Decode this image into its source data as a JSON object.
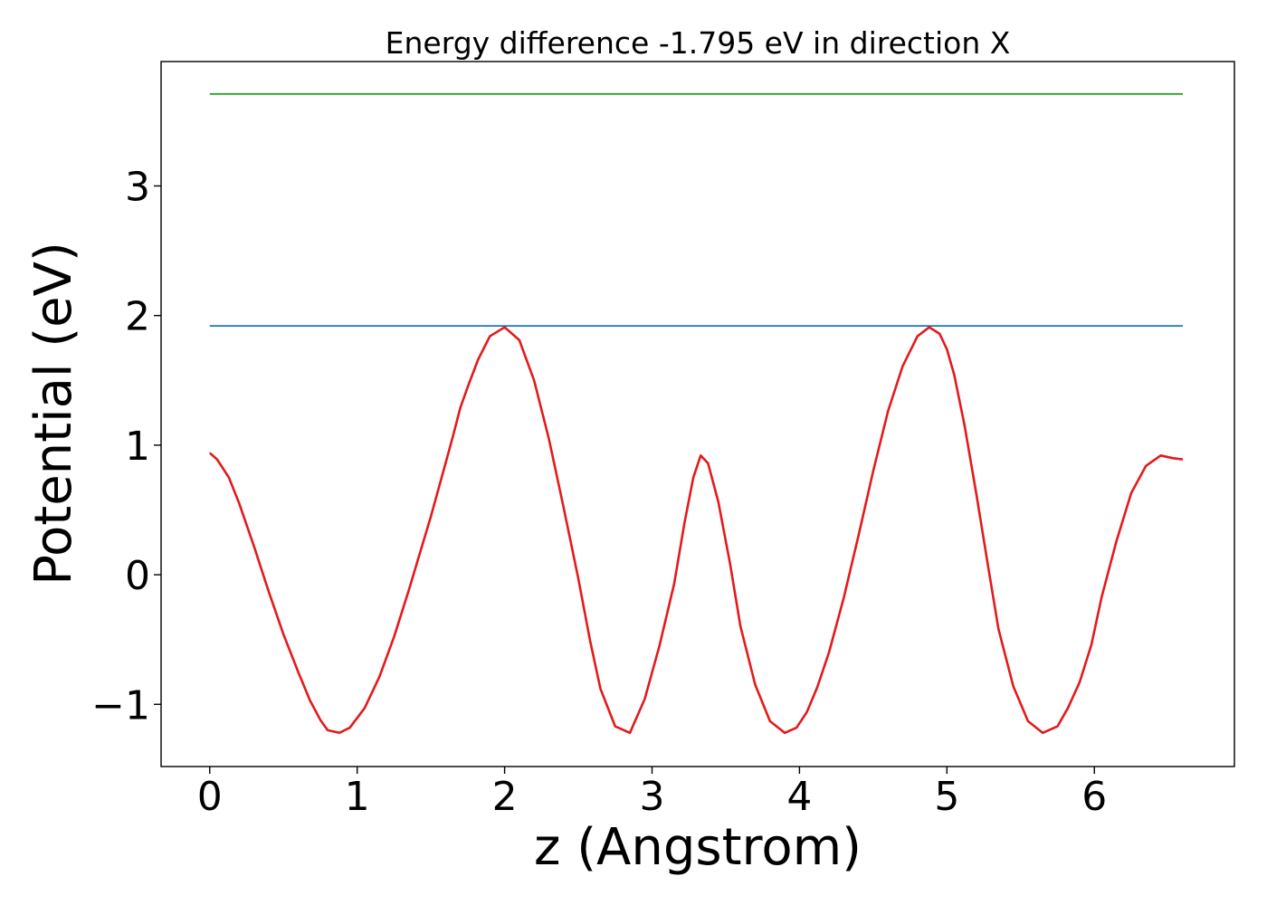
{
  "chart_data": {
    "type": "line",
    "title": "Energy difference -1.795 eV in direction X",
    "xlabel": "z (Angstrom)",
    "ylabel": "Potential (eV)",
    "xlim": [
      -0.33,
      6.95
    ],
    "ylim": [
      -1.48,
      3.96
    ],
    "xticks": [
      0,
      1,
      2,
      3,
      4,
      5,
      6
    ],
    "xtick_labels": [
      "0",
      "1",
      "2",
      "3",
      "4",
      "5",
      "6"
    ],
    "yticks": [
      -1,
      0,
      1,
      2,
      3
    ],
    "ytick_labels": [
      "−1",
      "0",
      "1",
      "2",
      "3"
    ],
    "grid": false,
    "legend": "none",
    "series": [
      {
        "color": "#2ca02c",
        "x": [
          0,
          6.6
        ],
        "y": [
          3.71,
          3.71
        ]
      },
      {
        "color": "#1f77b4",
        "x": [
          0,
          6.6
        ],
        "y": [
          1.92,
          1.92
        ]
      },
      {
        "color": "#e31a1c",
        "x": [
          0,
          0.05,
          0.13,
          0.2,
          0.3,
          0.4,
          0.5,
          0.6,
          0.68,
          0.75,
          0.8,
          0.88,
          0.95,
          1.05,
          1.15,
          1.25,
          1.35,
          1.45,
          1.5,
          1.58,
          1.65,
          1.7,
          1.75,
          1.82,
          1.9,
          2.0,
          2.1,
          2.2,
          2.3,
          2.4,
          2.5,
          2.58,
          2.65,
          2.75,
          2.85,
          2.95,
          3.05,
          3.15,
          3.22,
          3.28,
          3.33,
          3.38,
          3.45,
          3.53,
          3.6,
          3.7,
          3.8,
          3.9,
          3.98,
          4.05,
          4.12,
          4.2,
          4.3,
          4.4,
          4.5,
          4.6,
          4.7,
          4.8,
          4.88,
          4.95,
          5.0,
          5.05,
          5.12,
          5.2,
          5.28,
          5.35,
          5.45,
          5.55,
          5.65,
          5.75,
          5.82,
          5.9,
          5.98,
          6.05,
          6.15,
          6.25,
          6.35,
          6.45,
          6.53,
          6.6
        ],
        "y": [
          0.94,
          0.89,
          0.75,
          0.55,
          0.22,
          -0.13,
          -0.46,
          -0.75,
          -0.97,
          -1.12,
          -1.2,
          -1.22,
          -1.18,
          -1.03,
          -0.79,
          -0.48,
          -0.12,
          0.26,
          0.45,
          0.78,
          1.07,
          1.29,
          1.45,
          1.66,
          1.84,
          1.91,
          1.81,
          1.5,
          1.05,
          0.52,
          -0.03,
          -0.51,
          -0.88,
          -1.17,
          -1.22,
          -0.96,
          -0.55,
          -0.07,
          0.4,
          0.75,
          0.92,
          0.86,
          0.56,
          0.08,
          -0.4,
          -0.85,
          -1.13,
          -1.22,
          -1.18,
          -1.06,
          -0.87,
          -0.6,
          -0.18,
          0.3,
          0.8,
          1.26,
          1.61,
          1.84,
          1.91,
          1.86,
          1.74,
          1.54,
          1.15,
          0.62,
          0.06,
          -0.42,
          -0.86,
          -1.13,
          -1.22,
          -1.17,
          -1.03,
          -0.83,
          -0.54,
          -0.17,
          0.26,
          0.63,
          0.84,
          0.92,
          0.9,
          0.89
        ]
      }
    ]
  }
}
